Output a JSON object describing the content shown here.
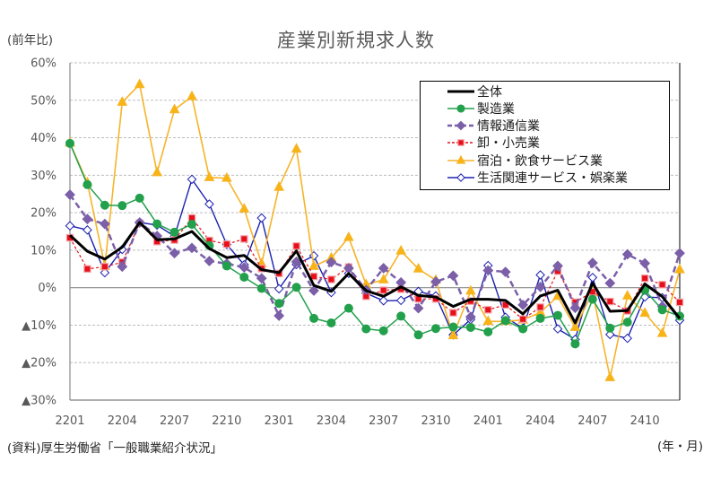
{
  "chart_data": {
    "type": "line",
    "title": "産業別新規求人数",
    "ylabel": "(前年比)",
    "xlabel": "(年・月)",
    "source": "(資料)厚生労働省「一般職業紹介状況」",
    "ylim": [
      -30,
      60
    ],
    "yticks": [
      60,
      50,
      40,
      30,
      20,
      10,
      0,
      -10,
      -20,
      -30
    ],
    "ytick_labels": [
      "60%",
      "50%",
      "40%",
      "30%",
      "20%",
      "10%",
      "0%",
      "▲10%",
      "▲20%",
      "▲30%"
    ],
    "x": [
      "2201",
      "2202",
      "2203",
      "2204",
      "2205",
      "2206",
      "2207",
      "2208",
      "2209",
      "2210",
      "2211",
      "2212",
      "2301",
      "2302",
      "2303",
      "2304",
      "2305",
      "2306",
      "2307",
      "2308",
      "2309",
      "2310",
      "2311",
      "2312",
      "2401",
      "2402",
      "2403",
      "2404",
      "2405",
      "2406",
      "2407",
      "2408",
      "2409",
      "2410",
      "2411",
      "2412"
    ],
    "xtick_labels": [
      "2201",
      "2204",
      "2207",
      "2210",
      "2301",
      "2304",
      "2307",
      "2310",
      "2401",
      "2404",
      "2407",
      "2410"
    ],
    "grid": true,
    "legend_position": "top-right",
    "series": [
      {
        "name": "全体",
        "color": "#000000",
        "line_style": "solid",
        "marker": "none",
        "marker_fill": "#000000",
        "values": [
          14.0,
          9.7,
          7.6,
          10.8,
          17.4,
          12.8,
          13.0,
          15.0,
          10.4,
          8.0,
          8.6,
          4.8,
          4.0,
          9.8,
          0.6,
          -1.0,
          3.8,
          -0.8,
          -2.3,
          0.2,
          -2.1,
          -2.5,
          -5.0,
          -3.1,
          -3.1,
          -3.4,
          -7.0,
          -2.2,
          -0.7,
          -9.4,
          1.2,
          -6.3,
          -6.1,
          1.0,
          -2.4,
          -8.2
        ]
      },
      {
        "name": "製造業",
        "color": "#22a04c",
        "line_style": "solid",
        "marker": "circle",
        "marker_fill": "#22a04c",
        "values": [
          38.5,
          27.5,
          22.0,
          21.9,
          23.9,
          17.0,
          14.8,
          16.9,
          11.2,
          5.8,
          2.8,
          -0.2,
          -4.2,
          0.1,
          -8.2,
          -9.4,
          -5.5,
          -11.0,
          -11.5,
          -7.6,
          -12.6,
          -10.9,
          -10.5,
          -10.6,
          -11.8,
          -8.8,
          -11.0,
          -8.2,
          -7.4,
          -15.0,
          -3.1,
          -10.8,
          -9.2,
          -0.7,
          -5.9,
          -7.6
        ]
      },
      {
        "name": "情報通信業",
        "color": "#7b5fa8",
        "line_style": "dashed",
        "marker": "diamond",
        "marker_fill": "#7b5fa8",
        "values": [
          24.8,
          18.3,
          17.0,
          5.6,
          17.4,
          13.8,
          9.2,
          10.6,
          7.1,
          6.4,
          5.4,
          2.5,
          -7.5,
          6.9,
          -0.8,
          6.8,
          5.2,
          -0.6,
          5.2,
          1.4,
          -5.5,
          1.6,
          3.2,
          -7.8,
          4.6,
          4.2,
          -4.6,
          0.2,
          5.8,
          -5.4,
          6.6,
          1.2,
          8.9,
          6.5,
          -5.0,
          9.2
        ]
      },
      {
        "name": "卸・小売業",
        "color": "#e60f1a",
        "line_style": "short-dashed",
        "marker": "square",
        "marker_fill": "#e60f1a",
        "values": [
          13.3,
          5.0,
          5.6,
          6.8,
          17.2,
          12.3,
          12.7,
          18.6,
          12.6,
          11.6,
          13.0,
          5.1,
          3.8,
          11.1,
          3.0,
          2.2,
          5.5,
          -2.3,
          -0.7,
          -0.4,
          -3.0,
          -3.0,
          -6.7,
          -3.6,
          -5.9,
          -4.6,
          -8.4,
          -5.2,
          4.4,
          -3.9,
          -1.1,
          -3.7,
          -6.2,
          2.5,
          0.8,
          -3.9
        ]
      },
      {
        "name": "宿泊・飲食サービス業",
        "color": "#f6b42a",
        "line_style": "solid",
        "marker": "triangle",
        "marker_fill": "#f8b413",
        "values": [
          38.6,
          28.0,
          5.7,
          49.5,
          54.2,
          30.7,
          47.5,
          51.0,
          29.4,
          29.2,
          21.0,
          6.4,
          26.8,
          37.0,
          5.7,
          7.9,
          13.4,
          0.8,
          2.1,
          9.8,
          5.0,
          2.0,
          -12.8,
          -0.9,
          -9.0,
          -9.0,
          -8.6,
          -6.6,
          -2.3,
          -10.6,
          -1.3,
          -24.0,
          -2.2,
          -6.8,
          -12.2,
          4.8
        ]
      },
      {
        "name": "生活関連サービス・娯楽業",
        "color": "#1b20b0",
        "line_style": "solid",
        "marker": "diamond",
        "marker_fill": "#ffffff",
        "values": [
          16.5,
          15.4,
          4.0,
          10.2,
          17.4,
          16.7,
          13.7,
          28.9,
          22.3,
          11.5,
          6.1,
          18.6,
          -0.3,
          6.2,
          8.5,
          -1.3,
          3.8,
          -1.5,
          -3.5,
          -3.4,
          -1.0,
          -2.2,
          -12.6,
          -8.5,
          5.9,
          -7.9,
          -10.8,
          3.4,
          -11.0,
          -13.8,
          2.7,
          -12.5,
          -13.5,
          -2.5,
          -2.7,
          -8.7
        ]
      }
    ]
  }
}
